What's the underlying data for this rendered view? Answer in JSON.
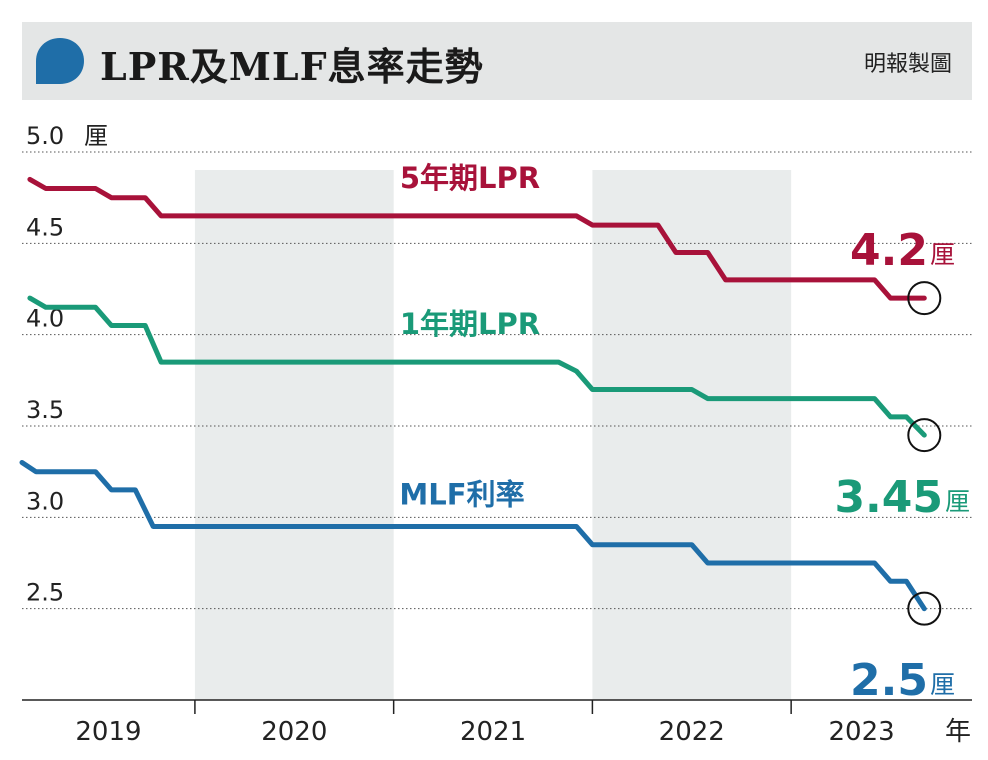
{
  "header": {
    "title": "LPR及MLF息率走勢",
    "source": "明報製圖",
    "bubble_icon": "speech-bubble-icon"
  },
  "colors": {
    "lpr5": "#a8123a",
    "lpr1": "#1a9a78",
    "mlf": "#1f6ea8",
    "band": "#e9ecec",
    "header_bg": "#e4e6e6",
    "bubble": "#1f6ea8"
  },
  "chart_data": {
    "type": "line",
    "title": "LPR及MLF息率走勢",
    "ylabel": "厘",
    "xlabel": "年",
    "ylim": [
      2.0,
      5.0
    ],
    "xlim": [
      2019.13,
      2023.91
    ],
    "grid": true,
    "x_tick_labels": [
      "2019",
      "2020",
      "2021",
      "2022",
      "2023"
    ],
    "y_ticks": [
      "5.0",
      "4.5",
      "4.0",
      "3.5",
      "3.0",
      "2.5"
    ],
    "shaded_years": [
      "2020",
      "2022"
    ],
    "series": [
      {
        "name": "5年期LPR",
        "color": "#a8123a",
        "end_value": "4.2",
        "unit": "厘",
        "points": [
          [
            2019.17,
            4.85
          ],
          [
            2019.25,
            4.8
          ],
          [
            2019.5,
            4.8
          ],
          [
            2019.58,
            4.75
          ],
          [
            2019.75,
            4.75
          ],
          [
            2019.83,
            4.65
          ],
          [
            2021.92,
            4.65
          ],
          [
            2022.0,
            4.6
          ],
          [
            2022.33,
            4.6
          ],
          [
            2022.42,
            4.45
          ],
          [
            2022.58,
            4.45
          ],
          [
            2022.67,
            4.3
          ],
          [
            2023.42,
            4.3
          ],
          [
            2023.5,
            4.2
          ],
          [
            2023.67,
            4.2
          ]
        ]
      },
      {
        "name": "1年期LPR",
        "color": "#1a9a78",
        "end_value": "3.45",
        "unit": "厘",
        "points": [
          [
            2019.17,
            4.2
          ],
          [
            2019.25,
            4.15
          ],
          [
            2019.5,
            4.15
          ],
          [
            2019.58,
            4.05
          ],
          [
            2019.75,
            4.05
          ],
          [
            2019.83,
            3.85
          ],
          [
            2021.83,
            3.85
          ],
          [
            2021.92,
            3.8
          ],
          [
            2022.0,
            3.7
          ],
          [
            2022.5,
            3.7
          ],
          [
            2022.58,
            3.65
          ],
          [
            2023.42,
            3.65
          ],
          [
            2023.5,
            3.55
          ],
          [
            2023.58,
            3.55
          ],
          [
            2023.67,
            3.45
          ]
        ]
      },
      {
        "name": "MLF利率",
        "color": "#1f6ea8",
        "end_value": "2.5",
        "unit": "厘",
        "points": [
          [
            2019.13,
            3.3
          ],
          [
            2019.2,
            3.25
          ],
          [
            2019.5,
            3.25
          ],
          [
            2019.58,
            3.15
          ],
          [
            2019.7,
            3.15
          ],
          [
            2019.79,
            2.95
          ],
          [
            2021.92,
            2.95
          ],
          [
            2022.0,
            2.85
          ],
          [
            2022.5,
            2.85
          ],
          [
            2022.58,
            2.75
          ],
          [
            2023.42,
            2.75
          ],
          [
            2023.5,
            2.65
          ],
          [
            2023.58,
            2.65
          ],
          [
            2023.67,
            2.5
          ]
        ]
      }
    ]
  }
}
